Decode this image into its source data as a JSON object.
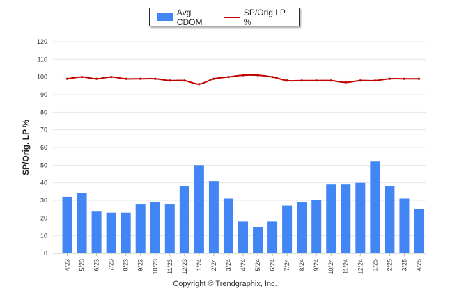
{
  "chart_data": {
    "type": "bar",
    "categories": [
      "4/23",
      "5/23",
      "6/23",
      "7/23",
      "8/23",
      "9/23",
      "10/23",
      "11/23",
      "12/23",
      "1/24",
      "2/24",
      "3/24",
      "4/24",
      "5/24",
      "6/24",
      "7/24",
      "8/24",
      "9/24",
      "10/24",
      "11/24",
      "12/24",
      "1/25",
      "2/25",
      "3/25",
      "4/25"
    ],
    "series": [
      {
        "name": "Avg CDOM",
        "type": "bar",
        "color": "#4285f4",
        "values": [
          32,
          34,
          24,
          23,
          23,
          28,
          29,
          28,
          38,
          50,
          41,
          31,
          18,
          15,
          18,
          27,
          29,
          30,
          39,
          39,
          40,
          52,
          38,
          31,
          25
        ]
      },
      {
        "name": "SP/Orig LP %",
        "type": "line",
        "color": "#c00000",
        "values": [
          99,
          100,
          99,
          100,
          99,
          99,
          99,
          98,
          98,
          96,
          99,
          100,
          101,
          101,
          100,
          98,
          98,
          98,
          98,
          97,
          98,
          98,
          99,
          99,
          99
        ]
      }
    ],
    "ylabel": "SP/Orig. LP %",
    "ylim": [
      0,
      120
    ],
    "yticks": [
      0,
      10,
      20,
      30,
      40,
      50,
      60,
      70,
      80,
      90,
      100,
      110,
      120
    ],
    "grid": true,
    "legend_position": "top-center"
  },
  "footer": {
    "copyright": "Copyright © Trendgraphix, Inc."
  }
}
